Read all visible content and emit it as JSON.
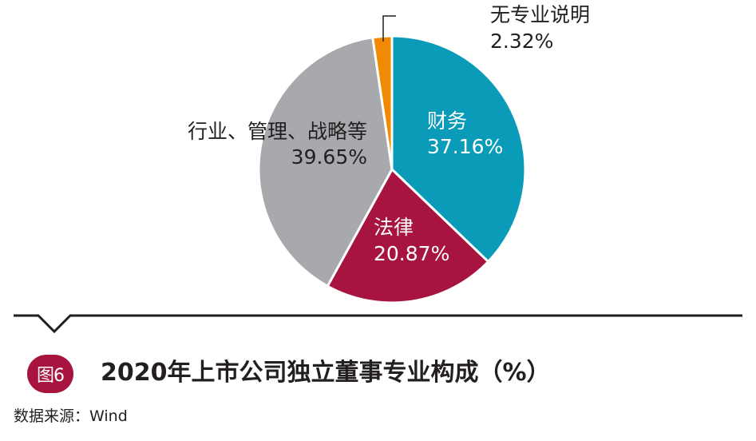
{
  "figure": {
    "badge": "图6",
    "title": "2020年上市公司独立董事专业构成（%）",
    "source": "数据来源：Wind"
  },
  "chart_data": {
    "type": "pie",
    "unit": "%",
    "slices": [
      {
        "name": "财务",
        "value": 37.16,
        "value_label": "37.16%",
        "color": "#0a9bb8"
      },
      {
        "name": "法律",
        "value": 20.87,
        "value_label": "20.87%",
        "color": "#a6143f"
      },
      {
        "name": "行业、管理、战略等",
        "value": 39.65,
        "value_label": "39.65%",
        "color": "#a7a9ac"
      },
      {
        "name": "无专业说明",
        "value": 2.32,
        "value_label": "2.32%",
        "color": "#f18a00"
      }
    ]
  }
}
